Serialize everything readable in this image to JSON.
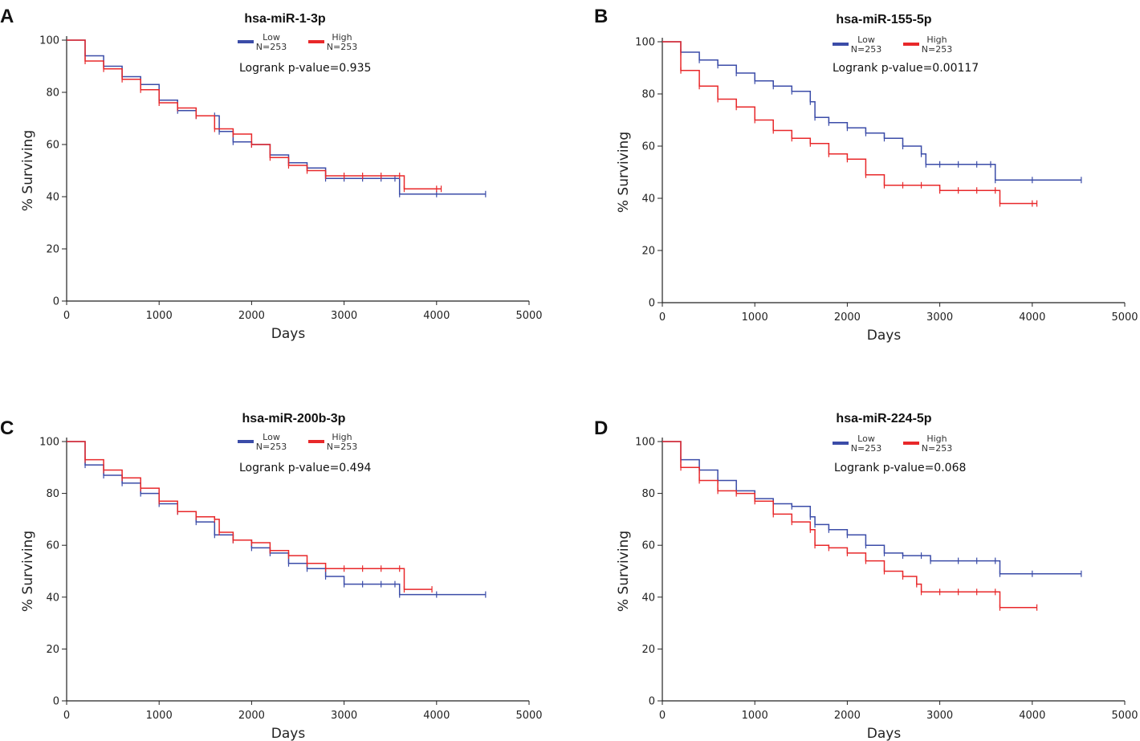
{
  "colors": {
    "low": "#3b4ca8",
    "high": "#e8282a",
    "axis": "#222222"
  },
  "chart_data": [
    {
      "type": "line",
      "panel": "A",
      "title": "hsa-miR-1-3p",
      "xlabel": "Days",
      "ylabel": "% Surviving",
      "xlim": [
        0,
        5000
      ],
      "ylim": [
        0,
        100
      ],
      "xticks": [
        0,
        1000,
        2000,
        3000,
        4000,
        5000
      ],
      "yticks": [
        0,
        20,
        40,
        60,
        80,
        100
      ],
      "pvalue_text": "Logrank p-value=0.935",
      "series": [
        {
          "name": "Low",
          "n_label": "N=253",
          "color": "#3b4ca8",
          "x": [
            0,
            200,
            400,
            600,
            800,
            1000,
            1200,
            1400,
            1600,
            1650,
            1800,
            2000,
            2200,
            2400,
            2600,
            2800,
            3000,
            3200,
            3400,
            3550,
            3600,
            4000,
            4530
          ],
          "y": [
            100,
            94,
            90,
            86,
            83,
            77,
            73,
            71,
            71,
            65,
            61,
            60,
            56,
            53,
            51,
            47,
            47,
            47,
            47,
            47,
            41,
            41,
            41
          ]
        },
        {
          "name": "High",
          "n_label": "N=253",
          "color": "#e8282a",
          "x": [
            0,
            200,
            400,
            600,
            800,
            1000,
            1200,
            1400,
            1600,
            1800,
            2000,
            2200,
            2400,
            2600,
            2800,
            3000,
            3200,
            3400,
            3600,
            3650,
            4000,
            4050
          ],
          "y": [
            100,
            92,
            89,
            85,
            81,
            76,
            74,
            71,
            66,
            64,
            60,
            55,
            52,
            50,
            48,
            48,
            48,
            48,
            48,
            43,
            43,
            43
          ]
        }
      ]
    },
    {
      "type": "line",
      "panel": "B",
      "title": "hsa-miR-155-5p",
      "xlabel": "Days",
      "ylabel": "% Surviving",
      "xlim": [
        0,
        5000
      ],
      "ylim": [
        0,
        100
      ],
      "xticks": [
        0,
        1000,
        2000,
        3000,
        4000,
        5000
      ],
      "yticks": [
        0,
        20,
        40,
        60,
        80,
        100
      ],
      "pvalue_text": "Logrank p-value=0.00117",
      "series": [
        {
          "name": "Low",
          "n_label": "N=253",
          "color": "#3b4ca8",
          "x": [
            0,
            200,
            400,
            600,
            800,
            1000,
            1200,
            1400,
            1600,
            1650,
            1800,
            2000,
            2200,
            2400,
            2600,
            2800,
            2850,
            3000,
            3200,
            3400,
            3550,
            3600,
            4000,
            4530
          ],
          "y": [
            100,
            96,
            93,
            91,
            88,
            85,
            83,
            81,
            77,
            71,
            69,
            67,
            65,
            63,
            60,
            57,
            53,
            53,
            53,
            53,
            53,
            47,
            47,
            47
          ]
        },
        {
          "name": "High",
          "n_label": "N=253",
          "color": "#e8282a",
          "x": [
            0,
            200,
            400,
            600,
            800,
            1000,
            1200,
            1400,
            1600,
            1800,
            2000,
            2200,
            2400,
            2600,
            2800,
            3000,
            3200,
            3400,
            3600,
            3650,
            4000,
            4050
          ],
          "y": [
            100,
            89,
            83,
            78,
            75,
            70,
            66,
            63,
            61,
            57,
            55,
            49,
            45,
            45,
            45,
            43,
            43,
            43,
            43,
            38,
            38,
            38
          ]
        }
      ]
    },
    {
      "type": "line",
      "panel": "C",
      "title": "hsa-miR-200b-3p",
      "xlabel": "Days",
      "ylabel": "% Surviving",
      "xlim": [
        0,
        5000
      ],
      "ylim": [
        0,
        100
      ],
      "xticks": [
        0,
        1000,
        2000,
        3000,
        4000,
        5000
      ],
      "yticks": [
        0,
        20,
        40,
        60,
        80,
        100
      ],
      "pvalue_text": "Logrank p-value=0.494",
      "series": [
        {
          "name": "Low",
          "n_label": "N=253",
          "color": "#3b4ca8",
          "x": [
            0,
            200,
            400,
            600,
            800,
            1000,
            1200,
            1400,
            1600,
            1800,
            2000,
            2200,
            2400,
            2600,
            2800,
            3000,
            3200,
            3400,
            3550,
            3600,
            4000,
            4530
          ],
          "y": [
            100,
            91,
            87,
            84,
            80,
            76,
            73,
            69,
            64,
            62,
            59,
            57,
            53,
            51,
            48,
            45,
            45,
            45,
            45,
            41,
            41,
            41
          ]
        },
        {
          "name": "High",
          "n_label": "N=253",
          "color": "#e8282a",
          "x": [
            0,
            200,
            400,
            600,
            800,
            1000,
            1200,
            1400,
            1600,
            1650,
            1800,
            2000,
            2200,
            2400,
            2600,
            2800,
            3000,
            3200,
            3400,
            3600,
            3650,
            3950
          ],
          "y": [
            100,
            93,
            89,
            86,
            82,
            77,
            73,
            71,
            70,
            65,
            62,
            61,
            58,
            56,
            53,
            51,
            51,
            51,
            51,
            51,
            43,
            43
          ]
        }
      ]
    },
    {
      "type": "line",
      "panel": "D",
      "title": "hsa-miR-224-5p",
      "xlabel": "Days",
      "ylabel": "% Surviving",
      "xlim": [
        0,
        5000
      ],
      "ylim": [
        0,
        100
      ],
      "xticks": [
        0,
        1000,
        2000,
        3000,
        4000,
        5000
      ],
      "yticks": [
        0,
        20,
        40,
        60,
        80,
        100
      ],
      "pvalue_text": "Logrank p-value=0.068",
      "series": [
        {
          "name": "Low",
          "n_label": "N=253",
          "color": "#3b4ca8",
          "x": [
            0,
            200,
            400,
            600,
            800,
            1000,
            1200,
            1400,
            1600,
            1650,
            1800,
            2000,
            2200,
            2400,
            2600,
            2800,
            2900,
            3200,
            3400,
            3600,
            3650,
            4000,
            4530
          ],
          "y": [
            100,
            93,
            89,
            85,
            81,
            78,
            76,
            75,
            71,
            68,
            66,
            64,
            60,
            57,
            56,
            56,
            54,
            54,
            54,
            54,
            49,
            49,
            49
          ]
        },
        {
          "name": "High",
          "n_label": "N=253",
          "color": "#e8282a",
          "x": [
            0,
            200,
            400,
            600,
            800,
            1000,
            1200,
            1400,
            1600,
            1650,
            1800,
            2000,
            2200,
            2400,
            2600,
            2750,
            2800,
            3000,
            3200,
            3400,
            3600,
            3650,
            4050
          ],
          "y": [
            100,
            90,
            85,
            81,
            80,
            77,
            72,
            69,
            66,
            60,
            59,
            57,
            54,
            50,
            48,
            45,
            42,
            42,
            42,
            42,
            42,
            36,
            36
          ]
        }
      ]
    }
  ]
}
